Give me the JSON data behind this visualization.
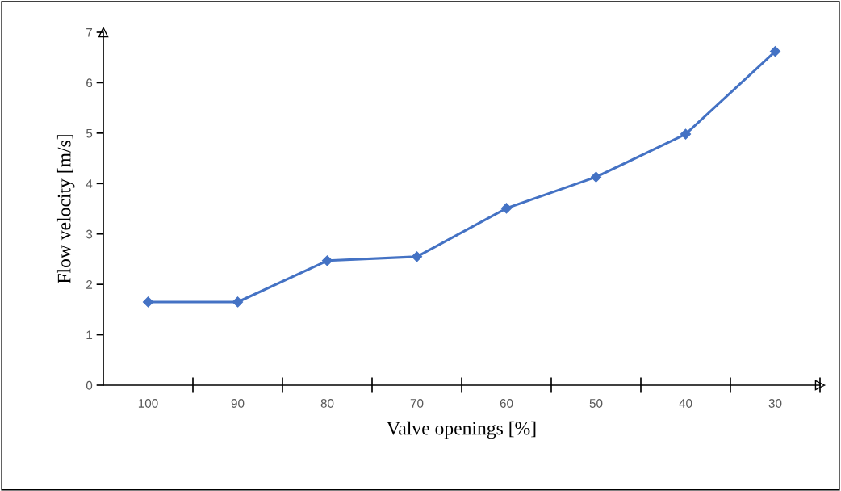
{
  "chart_data": {
    "type": "line",
    "xlabel": "Valve openings [%]",
    "ylabel": "Flow velocity [m/s]",
    "categories": [
      "100",
      "90",
      "80",
      "70",
      "60",
      "50",
      "40",
      "30"
    ],
    "series": [
      {
        "color": "#4472c4",
        "values": [
          1.65,
          1.65,
          2.47,
          2.55,
          3.51,
          4.13,
          4.98,
          6.62
        ]
      }
    ],
    "ylim": [
      0,
      7
    ],
    "yticks": [
      0,
      1,
      2,
      3,
      4,
      5,
      6,
      7
    ],
    "grid": false,
    "legend": false,
    "marker": "diamond",
    "line_style": "solid"
  }
}
